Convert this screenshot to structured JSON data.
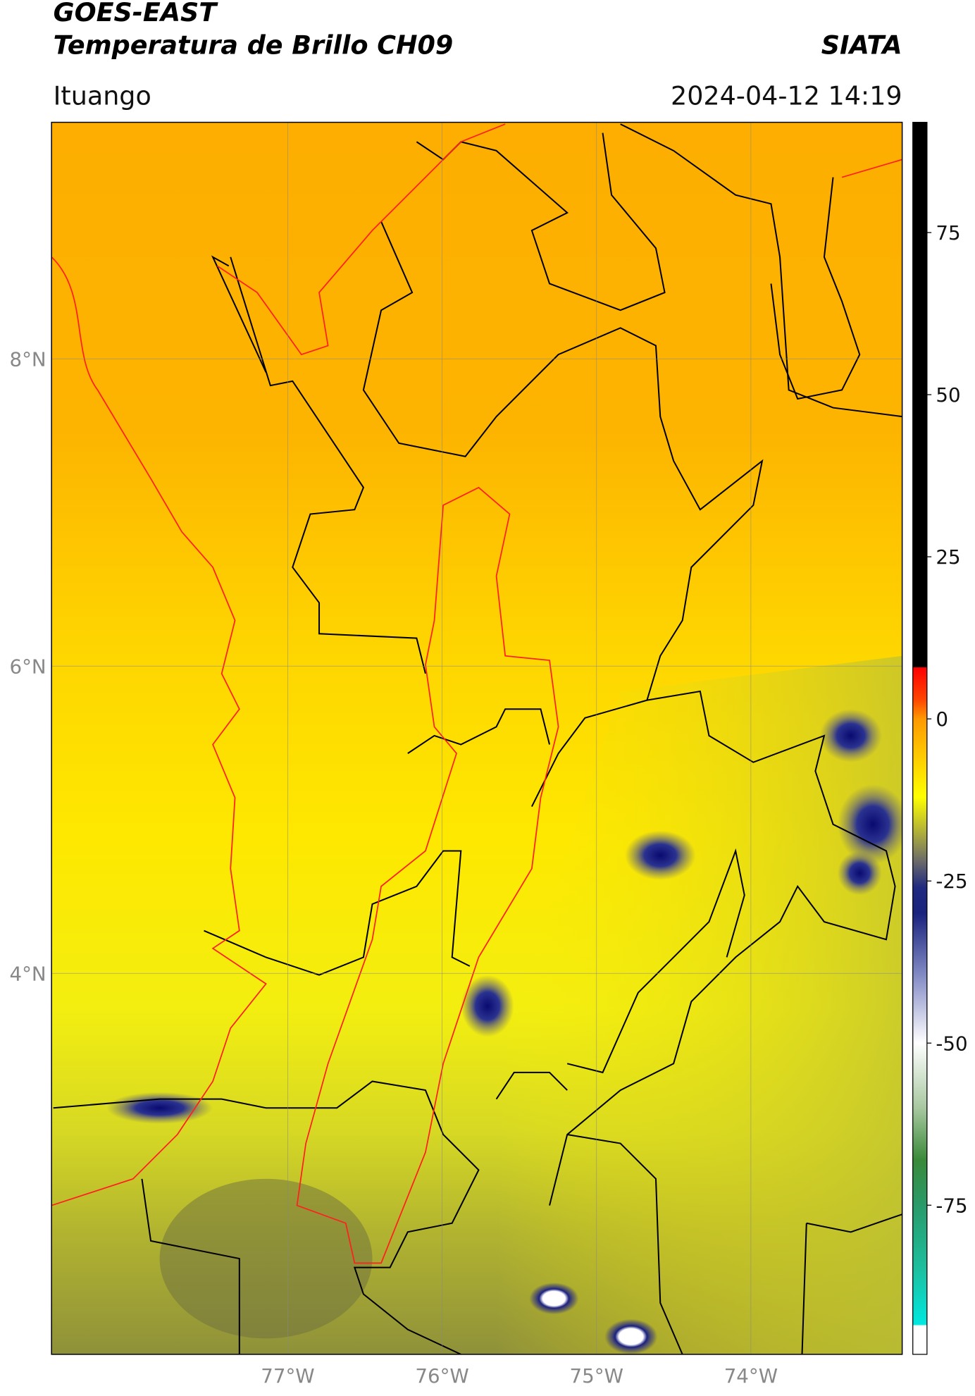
{
  "header": {
    "title": "GOES-EAST",
    "subtitle": "Temperatura de Brillo CH09",
    "brand": "SIATA",
    "location": "Ituango",
    "timestamp": "2024-04-12 14:19"
  },
  "map": {
    "xlim": [
      -78.53,
      -73.02
    ],
    "ylim": [
      1.52,
      9.54
    ],
    "xticks": [
      {
        "value": -77,
        "label": "77°W"
      },
      {
        "value": -76,
        "label": "76°W"
      },
      {
        "value": -75,
        "label": "75°W"
      },
      {
        "value": -74,
        "label": "74°W"
      }
    ],
    "yticks": [
      {
        "value": 4,
        "label": "4°N"
      },
      {
        "value": 6,
        "label": "6°N"
      },
      {
        "value": 8,
        "label": "8°N"
      }
    ],
    "grid": true
  },
  "colorbar": {
    "lim": [
      -98,
      92
    ],
    "ticks": [
      75,
      50,
      25,
      0,
      -25,
      -50,
      -75
    ],
    "stops": [
      {
        "value": -98,
        "color": "#ffffff"
      },
      {
        "value": -93.6,
        "color": "#ffffff"
      },
      {
        "value": -93.4,
        "color": "#00e8e0"
      },
      {
        "value": -85,
        "color": "#1cc0a0"
      },
      {
        "value": -75,
        "color": "#2a9a6a"
      },
      {
        "value": -68,
        "color": "#3a8a3a"
      },
      {
        "value": -60,
        "color": "#a8c8a0"
      },
      {
        "value": -50,
        "color": "#ffffff"
      },
      {
        "value": -40,
        "color": "#8890c8"
      },
      {
        "value": -30,
        "color": "#1a237e"
      },
      {
        "value": -26,
        "color": "#202a80"
      },
      {
        "value": -22,
        "color": "#6a6a6a"
      },
      {
        "value": -18,
        "color": "#a8a840"
      },
      {
        "value": -12,
        "color": "#ffff00"
      },
      {
        "value": 0,
        "color": "#ff9900"
      },
      {
        "value": 3,
        "color": "#ff4400"
      },
      {
        "value": 7.9,
        "color": "#ff0000"
      },
      {
        "value": 8,
        "color": "#000000"
      },
      {
        "value": 92,
        "color": "#000000"
      }
    ]
  }
}
